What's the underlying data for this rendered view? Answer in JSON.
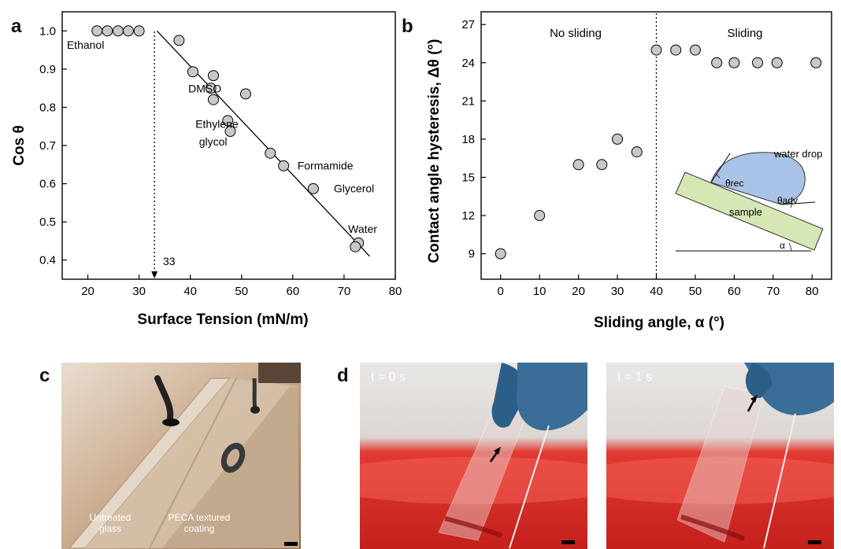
{
  "panels": {
    "a": "a",
    "b": "b",
    "c": "c",
    "d": "d"
  },
  "chart_data": [
    {
      "type": "scatter",
      "xlabel": "Surface Tension (mN/m)",
      "ylabel": "Cos θ",
      "xlim": [
        15,
        80
      ],
      "ylim": [
        0.35,
        1.05
      ],
      "xticks": [
        "20",
        "30",
        "40",
        "50",
        "60",
        "70",
        "80"
      ],
      "yticks": [
        "0.4",
        "0.5",
        "0.6",
        "0.7",
        "0.8",
        "0.9",
        "1.0"
      ],
      "points": [
        {
          "x": 21.8,
          "y": 1.0
        },
        {
          "x": 23.8,
          "y": 1.0
        },
        {
          "x": 25.9,
          "y": 1.0
        },
        {
          "x": 27.9,
          "y": 1.0
        },
        {
          "x": 30.0,
          "y": 1.0
        },
        {
          "x": 37.8,
          "y": 0.975
        },
        {
          "x": 40.5,
          "y": 0.893
        },
        {
          "x": 44.5,
          "y": 0.883
        },
        {
          "x": 44.0,
          "y": 0.85
        },
        {
          "x": 44.5,
          "y": 0.82
        },
        {
          "x": 50.8,
          "y": 0.835
        },
        {
          "x": 47.3,
          "y": 0.765
        },
        {
          "x": 47.8,
          "y": 0.737
        },
        {
          "x": 55.6,
          "y": 0.68
        },
        {
          "x": 58.2,
          "y": 0.647
        },
        {
          "x": 64.0,
          "y": 0.587
        },
        {
          "x": 72.8,
          "y": 0.445
        },
        {
          "x": 72.2,
          "y": 0.435
        }
      ],
      "fit_line": {
        "x": [
          33.5,
          75.0
        ],
        "y": [
          1.0,
          0.41
        ]
      },
      "critical_x": 33,
      "critical_label": "33",
      "annotations": [
        {
          "text": "Ethanol",
          "x": 15.9,
          "y": 0.953
        },
        {
          "text": "DMSO",
          "x": 39.6,
          "y": 0.839
        },
        {
          "text": "Ethylene",
          "x": 41.0,
          "y": 0.746
        },
        {
          "text": "glycol",
          "x": 41.7,
          "y": 0.7
        },
        {
          "text": "Formamide",
          "x": 60.9,
          "y": 0.637
        },
        {
          "text": "Glycerol",
          "x": 68.0,
          "y": 0.578
        },
        {
          "text": "Water",
          "x": 70.8,
          "y": 0.471
        }
      ],
      "grid": false,
      "legend": "none"
    },
    {
      "type": "scatter",
      "xlabel": "Sliding angle, α (°)",
      "ylabel": "Contact angle hysteresis, Δθ (°)",
      "xlim": [
        -5,
        85
      ],
      "ylim": [
        7,
        28
      ],
      "xticks": [
        "0",
        "10",
        "20",
        "30",
        "40",
        "50",
        "60",
        "70",
        "80"
      ],
      "yticks": [
        "9",
        "12",
        "15",
        "18",
        "21",
        "24",
        "27"
      ],
      "points": [
        {
          "x": 0,
          "y": 9
        },
        {
          "x": 10,
          "y": 12
        },
        {
          "x": 20,
          "y": 16
        },
        {
          "x": 26,
          "y": 16
        },
        {
          "x": 30,
          "y": 18
        },
        {
          "x": 35,
          "y": 17
        },
        {
          "x": 40,
          "y": 25
        },
        {
          "x": 45,
          "y": 25
        },
        {
          "x": 50,
          "y": 25
        },
        {
          "x": 55.5,
          "y": 24
        },
        {
          "x": 60,
          "y": 24
        },
        {
          "x": 66,
          "y": 24
        },
        {
          "x": 71,
          "y": 24
        },
        {
          "x": 81,
          "y": 24
        }
      ],
      "divider_x": 40,
      "region_labels": [
        "No sliding",
        "Sliding"
      ],
      "grid": false,
      "legend": "none"
    }
  ],
  "inset": {
    "water_drop": "water drop",
    "theta_rec": "θrec",
    "theta_adv": "θadv",
    "sample": "sample",
    "alpha": "α"
  },
  "photo_c": {
    "caption_left": [
      "Untreated",
      "glass"
    ],
    "caption_right": [
      "PECA textured",
      "coating"
    ]
  },
  "photo_d": {
    "time_left": "t = 0 s",
    "time_right": "t = 1 s"
  }
}
